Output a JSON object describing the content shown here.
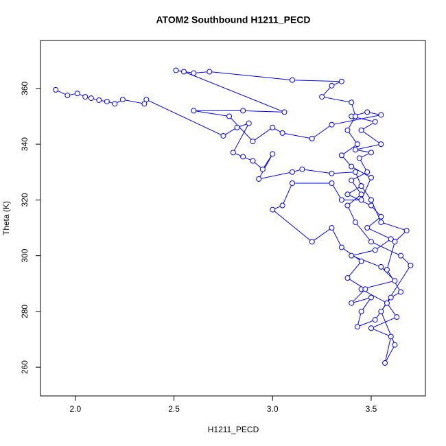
{
  "chart_data": {
    "type": "line",
    "title": "ATOM2 Southbound H1211_PECD",
    "x_label": "H1211_PECD",
    "y_label": "Theta (K)",
    "color": "#0000ff",
    "x": [
      1.9,
      1.96,
      2.01,
      2.05,
      2.08,
      2.12,
      2.16,
      2.2,
      2.24,
      2.35,
      2.36,
      2.75,
      2.82,
      2.88,
      2.8,
      2.85,
      2.9,
      2.95,
      3.0,
      2.93,
      3.1,
      3.15,
      3.3,
      3.42,
      3.45,
      3.38,
      3.5,
      3.55,
      3.48,
      3.6,
      3.52,
      3.4,
      3.55,
      3.62,
      3.45,
      3.58,
      3.63,
      3.5,
      3.6,
      3.57,
      3.62,
      3.55,
      3.7,
      3.65,
      3.5,
      3.42,
      3.38,
      3.45,
      3.4,
      3.48,
      3.44,
      3.5,
      3.42,
      3.55,
      3.45,
      3.52,
      3.4,
      3.48,
      3.55,
      3.3,
      3.2,
      3.05,
      3.0,
      2.9,
      2.78,
      2.6,
      2.85,
      3.06,
      2.55,
      2.51,
      2.6,
      2.68,
      3.1,
      3.35,
      3.3,
      3.25,
      3.4,
      3.42,
      3.38,
      3.43,
      3.35,
      3.4,
      3.5,
      3.45,
      3.35,
      3.3,
      3.1,
      3.05,
      3.0,
      3.2,
      3.3,
      3.35,
      3.45,
      3.38,
      3.47,
      3.4,
      3.5,
      3.45,
      3.43,
      3.52,
      3.6,
      3.65,
      3.58,
      3.62,
      3.68,
      3.55,
      3.5,
      3.45
    ],
    "values": [
      359.5,
      357.5,
      358.2,
      357.0,
      356.5,
      355.8,
      355.3,
      354.5,
      356.0,
      354.5,
      356.0,
      343.0,
      346.0,
      347.5,
      337.0,
      335.5,
      334.0,
      331.0,
      336.5,
      327.5,
      330.0,
      331.0,
      329.5,
      330.0,
      325.0,
      322.0,
      318.0,
      314.0,
      310.0,
      306.0,
      302.0,
      300.0,
      296.0,
      291.0,
      288.0,
      283.0,
      278.0,
      274.0,
      271.0,
      261.5,
      268.0,
      280.0,
      296.5,
      300.0,
      305.0,
      312.0,
      318.0,
      322.0,
      327.0,
      330.0,
      335.0,
      337.0,
      338.0,
      340.0,
      345.0,
      348.0,
      350.0,
      351.5,
      350.5,
      347.0,
      342.0,
      344.0,
      346.0,
      341.0,
      350.0,
      352.0,
      352.0,
      351.5,
      366.0,
      366.5,
      365.5,
      366.0,
      363.0,
      362.5,
      361.0,
      357.0,
      355.0,
      350.0,
      345.0,
      340.0,
      336.0,
      332.0,
      328.0,
      320.0,
      320.0,
      326.0,
      326.0,
      318.0,
      316.5,
      305.0,
      310.0,
      303.0,
      298.0,
      292.0,
      288.0,
      283.0,
      285.0,
      280.0,
      274.5,
      277.0,
      285.0,
      287.0,
      295.0,
      305.0,
      309.0,
      312.0,
      320.0,
      325.0
    ],
    "xlim": [
      1.823,
      3.775
    ],
    "ylim": [
      249.7,
      377.2
    ],
    "xticks": [
      {
        "value": 2,
        "label": "2.0"
      },
      2.5,
      {
        "value": 3,
        "label": "3.0"
      },
      3.5
    ],
    "yticks": [
      260,
      280,
      300,
      320,
      340,
      360
    ]
  }
}
